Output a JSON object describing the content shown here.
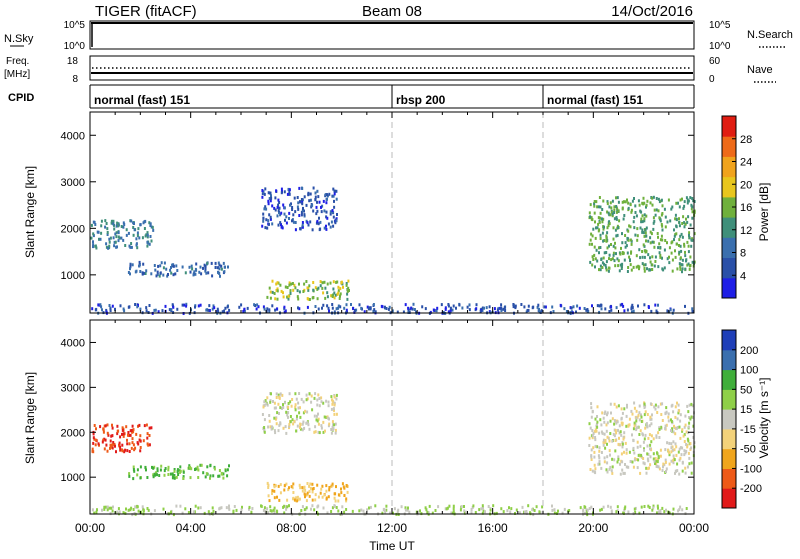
{
  "header": {
    "title": "TIGER (fitACF)",
    "beam": "Beam 08",
    "date": "14/Oct/2016"
  },
  "nsky_panel": {
    "left_label": "N.Sky",
    "left_ticks": [
      "10^5",
      "10^0"
    ],
    "right_ticks": [
      "10^5",
      "10^0"
    ],
    "right_label": "N.Search"
  },
  "freq_panel": {
    "left_label_line1": "Freq.",
    "left_label_line2": "[MHz]",
    "left_ticks": [
      "18",
      "8"
    ],
    "right_ticks": [
      "60",
      "0"
    ],
    "right_label": "Nave"
  },
  "cpid_panel": {
    "label": "CPID",
    "segments": [
      {
        "label": "normal (fast) 151",
        "start_hour": 0
      },
      {
        "label": "rbsp 200",
        "start_hour": 12
      },
      {
        "label": "normal (fast) 151",
        "start_hour": 18
      }
    ]
  },
  "colors": {
    "power": [
      "#1f1fe6",
      "#2a50a8",
      "#3a6fae",
      "#3f8f7a",
      "#6fb03c",
      "#e8c61d",
      "#f0a31c",
      "#ee6a18",
      "#e01d12"
    ],
    "velocity": [
      "#e11a1a",
      "#ee5a18",
      "#f0a51c",
      "#f3d27a",
      "#c8c8c0",
      "#8fcf48",
      "#3fae3a",
      "#3a6fae",
      "#1f3fb8"
    ]
  },
  "chart_data": [
    {
      "type": "heatmap",
      "name": "power",
      "ylabel": "Slant Range [km]",
      "xlabel": "",
      "x_ticks": [
        "00:00",
        "04:00",
        "08:00",
        "12:00",
        "16:00",
        "20:00",
        "00:00"
      ],
      "xlim_hours": [
        0,
        24
      ],
      "y_ticks": [
        "1000",
        "2000",
        "3000",
        "4000"
      ],
      "ylim": [
        180,
        4500
      ],
      "colorbar": {
        "label": "Power [dB]",
        "ticks": [
          "28",
          "24",
          "20",
          "16",
          "12",
          "8",
          "4"
        ],
        "range": [
          0,
          32
        ]
      },
      "regions": [
        {
          "hours": [
            0,
            24
          ],
          "range_km": [
            200,
            400
          ],
          "value": 6
        },
        {
          "hours": [
            0.0,
            2.5
          ],
          "range_km": [
            1600,
            2200
          ],
          "value": 12
        },
        {
          "hours": [
            1.5,
            5.5
          ],
          "range_km": [
            1000,
            1300
          ],
          "value": 9
        },
        {
          "hours": [
            6.8,
            9.8
          ],
          "range_km": [
            2000,
            2900
          ],
          "value": 6
        },
        {
          "hours": [
            7.0,
            10.3
          ],
          "range_km": [
            500,
            900
          ],
          "value": 18
        },
        {
          "hours": [
            19.8,
            24.0
          ],
          "range_km": [
            1100,
            2700
          ],
          "value": 16
        }
      ]
    },
    {
      "type": "heatmap",
      "name": "velocity",
      "ylabel": "Slant Range [km]",
      "xlabel": "Time UT",
      "x_ticks": [
        "00:00",
        "04:00",
        "08:00",
        "12:00",
        "16:00",
        "20:00",
        "00:00"
      ],
      "xlim_hours": [
        0,
        24
      ],
      "y_ticks": [
        "1000",
        "2000",
        "3000",
        "4000"
      ],
      "ylim": [
        180,
        4500
      ],
      "colorbar": {
        "label": "Velocity [m s⁻¹]",
        "ticks": [
          "200",
          "100",
          "50",
          "15",
          "-15",
          "-50",
          "-100",
          "-200"
        ]
      },
      "regions": [
        {
          "hours": [
            0,
            24
          ],
          "range_km": [
            200,
            400
          ],
          "value": 20
        },
        {
          "hours": [
            0.0,
            2.5
          ],
          "range_km": [
            1600,
            2200
          ],
          "value": -200
        },
        {
          "hours": [
            1.5,
            5.5
          ],
          "range_km": [
            1000,
            1300
          ],
          "value": 60
        },
        {
          "hours": [
            6.8,
            9.8
          ],
          "range_km": [
            2000,
            2900
          ],
          "value": 0
        },
        {
          "hours": [
            7.0,
            10.3
          ],
          "range_km": [
            500,
            900
          ],
          "value": -50
        },
        {
          "hours": [
            19.8,
            24.0
          ],
          "range_km": [
            1100,
            2700
          ],
          "value": 0
        }
      ]
    }
  ]
}
